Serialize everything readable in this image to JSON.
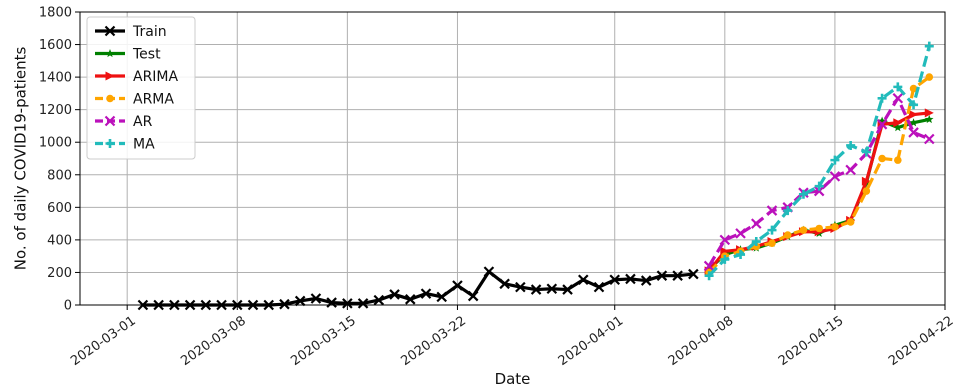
{
  "chart_data": {
    "type": "line",
    "xlabel": "Date",
    "ylabel": "No. of daily COVID19-patients",
    "ylim": [
      0,
      1800
    ],
    "xlim": [
      "2020-02-27",
      "2020-04-22"
    ],
    "x_ticks": [
      "2020-03-01",
      "2020-03-08",
      "2020-03-15",
      "2020-03-22",
      "2020-04-01",
      "2020-04-08",
      "2020-04-15",
      "2020-04-22"
    ],
    "y_ticks": [
      0,
      200,
      400,
      600,
      800,
      1000,
      1200,
      1400,
      1600,
      1800
    ],
    "grid": true,
    "legend_position": "top-left",
    "series": [
      {
        "name": "Train",
        "color": "#000000",
        "marker": "x",
        "dashed": false,
        "points": [
          [
            "2020-03-02",
            0
          ],
          [
            "2020-03-03",
            0
          ],
          [
            "2020-03-04",
            0
          ],
          [
            "2020-03-05",
            0
          ],
          [
            "2020-03-06",
            0
          ],
          [
            "2020-03-07",
            0
          ],
          [
            "2020-03-08",
            0
          ],
          [
            "2020-03-09",
            0
          ],
          [
            "2020-03-10",
            0
          ],
          [
            "2020-03-11",
            5
          ],
          [
            "2020-03-12",
            25
          ],
          [
            "2020-03-13",
            40
          ],
          [
            "2020-03-14",
            15
          ],
          [
            "2020-03-15",
            10
          ],
          [
            "2020-03-16",
            10
          ],
          [
            "2020-03-17",
            30
          ],
          [
            "2020-03-18",
            65
          ],
          [
            "2020-03-19",
            35
          ],
          [
            "2020-03-20",
            70
          ],
          [
            "2020-03-21",
            50
          ],
          [
            "2020-03-22",
            120
          ],
          [
            "2020-03-23",
            55
          ],
          [
            "2020-03-24",
            205
          ],
          [
            "2020-03-25",
            130
          ],
          [
            "2020-03-26",
            110
          ],
          [
            "2020-03-27",
            95
          ],
          [
            "2020-03-28",
            100
          ],
          [
            "2020-03-29",
            95
          ],
          [
            "2020-03-30",
            155
          ],
          [
            "2020-03-31",
            110
          ],
          [
            "2020-04-01",
            155
          ],
          [
            "2020-04-02",
            160
          ],
          [
            "2020-04-03",
            150
          ],
          [
            "2020-04-04",
            180
          ],
          [
            "2020-04-05",
            180
          ],
          [
            "2020-04-06",
            190
          ]
        ]
      },
      {
        "name": "Test",
        "color": "#008000",
        "marker": "star",
        "dashed": false,
        "points": [
          [
            "2020-04-07",
            220
          ],
          [
            "2020-04-08",
            310
          ],
          [
            "2020-04-09",
            340
          ],
          [
            "2020-04-10",
            350
          ],
          [
            "2020-04-11",
            380
          ],
          [
            "2020-04-12",
            420
          ],
          [
            "2020-04-13",
            460
          ],
          [
            "2020-04-14",
            440
          ],
          [
            "2020-04-15",
            490
          ],
          [
            "2020-04-16",
            520
          ],
          [
            "2020-04-17",
            750
          ],
          [
            "2020-04-18",
            1130
          ],
          [
            "2020-04-19",
            1090
          ],
          [
            "2020-04-20",
            1120
          ],
          [
            "2020-04-21",
            1140
          ]
        ]
      },
      {
        "name": "ARIMA",
        "color": "#ee1111",
        "marker": "triangle",
        "dashed": false,
        "points": [
          [
            "2020-04-07",
            210
          ],
          [
            "2020-04-08",
            330
          ],
          [
            "2020-04-09",
            340
          ],
          [
            "2020-04-10",
            360
          ],
          [
            "2020-04-11",
            390
          ],
          [
            "2020-04-12",
            420
          ],
          [
            "2020-04-13",
            450
          ],
          [
            "2020-04-14",
            450
          ],
          [
            "2020-04-15",
            470
          ],
          [
            "2020-04-16",
            520
          ],
          [
            "2020-04-17",
            760
          ],
          [
            "2020-04-18",
            1110
          ],
          [
            "2020-04-19",
            1120
          ],
          [
            "2020-04-20",
            1170
          ],
          [
            "2020-04-21",
            1180
          ]
        ]
      },
      {
        "name": "ARMA",
        "color": "#ffa500",
        "marker": "circle",
        "dashed": true,
        "points": [
          [
            "2020-04-07",
            200
          ],
          [
            "2020-04-08",
            300
          ],
          [
            "2020-04-09",
            330
          ],
          [
            "2020-04-10",
            360
          ],
          [
            "2020-04-11",
            380
          ],
          [
            "2020-04-12",
            430
          ],
          [
            "2020-04-13",
            460
          ],
          [
            "2020-04-14",
            470
          ],
          [
            "2020-04-15",
            480
          ],
          [
            "2020-04-16",
            510
          ],
          [
            "2020-04-17",
            700
          ],
          [
            "2020-04-18",
            900
          ],
          [
            "2020-04-19",
            890
          ],
          [
            "2020-04-20",
            1330
          ],
          [
            "2020-04-21",
            1400
          ]
        ]
      },
      {
        "name": "AR",
        "color": "#bb11bb",
        "marker": "x",
        "dashed": true,
        "points": [
          [
            "2020-04-07",
            240
          ],
          [
            "2020-04-08",
            400
          ],
          [
            "2020-04-09",
            440
          ],
          [
            "2020-04-10",
            500
          ],
          [
            "2020-04-11",
            580
          ],
          [
            "2020-04-12",
            600
          ],
          [
            "2020-04-13",
            690
          ],
          [
            "2020-04-14",
            700
          ],
          [
            "2020-04-15",
            790
          ],
          [
            "2020-04-16",
            830
          ],
          [
            "2020-04-17",
            930
          ],
          [
            "2020-04-18",
            1110
          ],
          [
            "2020-04-19",
            1270
          ],
          [
            "2020-04-20",
            1060
          ],
          [
            "2020-04-21",
            1020
          ]
        ]
      },
      {
        "name": "MA",
        "color": "#22bbbb",
        "marker": "plus",
        "dashed": true,
        "points": [
          [
            "2020-04-07",
            180
          ],
          [
            "2020-04-08",
            280
          ],
          [
            "2020-04-09",
            310
          ],
          [
            "2020-04-10",
            390
          ],
          [
            "2020-04-11",
            460
          ],
          [
            "2020-04-12",
            580
          ],
          [
            "2020-04-13",
            680
          ],
          [
            "2020-04-14",
            730
          ],
          [
            "2020-04-15",
            890
          ],
          [
            "2020-04-16",
            980
          ],
          [
            "2020-04-17",
            940
          ],
          [
            "2020-04-18",
            1270
          ],
          [
            "2020-04-19",
            1340
          ],
          [
            "2020-04-20",
            1230
          ],
          [
            "2020-04-21",
            1590
          ]
        ]
      }
    ]
  }
}
